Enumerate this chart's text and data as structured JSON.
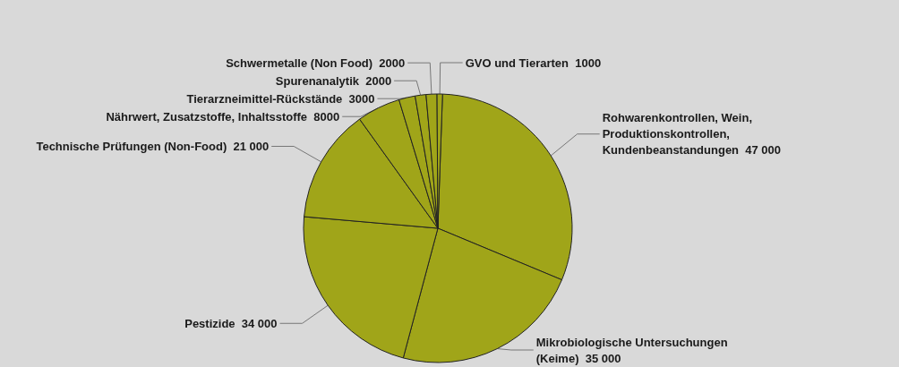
{
  "chart_data": {
    "type": "pie",
    "categories": [
      "Rohwarenkontrollen, Wein, Produktionskontrollen, Kundenbeanstandungen",
      "Mikrobiologische Untersuchungen (Keime)",
      "Pestizide",
      "Technische Prüfungen (Non-Food)",
      "Nährwert, Zusatzstoffe, Inhaltsstoffe",
      "Tierarzneimittel-Rückstände",
      "Spurenanalytik",
      "Schwermetalle (Non Food)",
      "GVO und Tierarten"
    ],
    "values": [
      47000,
      35000,
      34000,
      21000,
      8000,
      3000,
      2000,
      2000,
      1000
    ],
    "value_labels": [
      "47 000",
      "35 000",
      "34 000",
      "21 000",
      "8000",
      "3000",
      "2000",
      "2000",
      "1000"
    ],
    "colors": [
      "#a0a519",
      "#a0a519",
      "#a0a519",
      "#a0a519",
      "#a0a519",
      "#a0a519",
      "#a0a519",
      "#a0a519",
      "#a0a519"
    ],
    "legend": false
  }
}
